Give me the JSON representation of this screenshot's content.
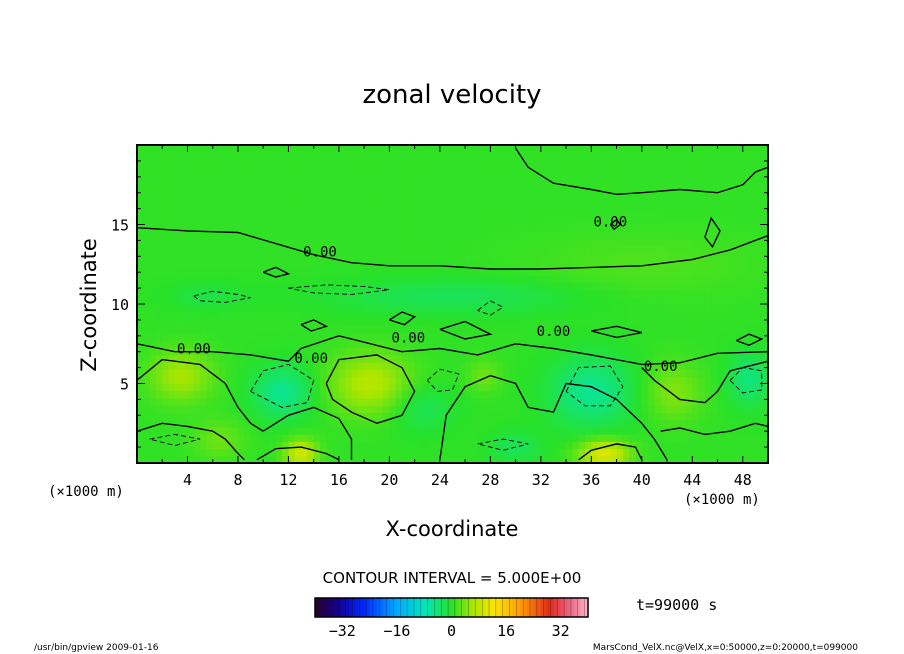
{
  "chart_data": {
    "type": "heatmap",
    "title": "zonal velocity",
    "xlabel": "X-coordinate",
    "ylabel": "Z-coordinate",
    "x_unit": "(×1000 m)",
    "z_unit": "(×1000 m)",
    "xlim": [
      0,
      50
    ],
    "ylim": [
      0,
      20
    ],
    "x_ticks": [
      4,
      8,
      12,
      16,
      20,
      24,
      28,
      32,
      36,
      40,
      44,
      48
    ],
    "y_ticks": [
      5,
      10,
      15
    ],
    "contour_interval_text": "CONTOUR INTERVAL = 5.000E+00",
    "contour_label": "0.00",
    "time_text": "t=99000 s",
    "colorbar": {
      "min": -40,
      "max": 40,
      "ticks": [
        -32,
        -16,
        0,
        16,
        32
      ]
    },
    "blobs": [
      {
        "x": 3.5,
        "z": 5.5,
        "rx": 2.4,
        "rz": 1.6,
        "v": 6
      },
      {
        "x": 18.5,
        "z": 5,
        "rx": 3.2,
        "rz": 1.9,
        "v": 7
      },
      {
        "x": 13,
        "z": 0.6,
        "rx": 1.3,
        "rz": 0.9,
        "v": 9
      },
      {
        "x": 37,
        "z": 0.6,
        "rx": 2.0,
        "rz": 0.9,
        "v": 10
      },
      {
        "x": 42.5,
        "z": 4.5,
        "rx": 2.2,
        "rz": 1.8,
        "v": 4
      },
      {
        "x": 27.5,
        "z": 5.5,
        "rx": 1.3,
        "rz": 1.0,
        "v": 3
      },
      {
        "x": 6.5,
        "z": 1.5,
        "rx": 2.0,
        "rz": 1.2,
        "v": 3
      },
      {
        "x": 11.5,
        "z": 4.5,
        "rx": 2.3,
        "rz": 1.6,
        "v": -6
      },
      {
        "x": 36,
        "z": 4.5,
        "rx": 3.2,
        "rz": 2.2,
        "v": -6
      },
      {
        "x": 48.5,
        "z": 5.3,
        "rx": 1.6,
        "rz": 1.6,
        "v": -5
      },
      {
        "x": 22.5,
        "z": 3.5,
        "rx": 2.5,
        "rz": 1.5,
        "v": -3
      },
      {
        "x": 25,
        "z": 10.5,
        "rx": 10.0,
        "rz": 1.1,
        "v": -3
      },
      {
        "x": 5.5,
        "z": 10.5,
        "rx": 3.0,
        "rz": 0.8,
        "v": -2
      },
      {
        "x": 30,
        "z": 1.0,
        "rx": 2.0,
        "rz": 1.0,
        "v": -3
      },
      {
        "x": 40,
        "z": 12.5,
        "rx": 9.0,
        "rz": 2.0,
        "v": 1.5
      }
    ],
    "contour_lines": [
      {
        "style": "solid",
        "points": [
          [
            0,
            14.8
          ],
          [
            4,
            14.6
          ],
          [
            8,
            14.5
          ],
          [
            11,
            13.8
          ],
          [
            14,
            13.1
          ],
          [
            17,
            12.6
          ],
          [
            20,
            12.4
          ],
          [
            24,
            12.4
          ],
          [
            28,
            12.2
          ],
          [
            32,
            12.2
          ],
          [
            36,
            12.3
          ],
          [
            40,
            12.4
          ],
          [
            44,
            12.8
          ],
          [
            47,
            13.4
          ],
          [
            50,
            14.3
          ]
        ]
      },
      {
        "style": "solid",
        "points": [
          [
            30,
            19.8
          ],
          [
            31,
            18.6
          ],
          [
            33,
            17.6
          ],
          [
            36,
            17.2
          ],
          [
            38,
            16.9
          ],
          [
            40,
            17.0
          ],
          [
            43,
            17.2
          ],
          [
            46,
            17.0
          ],
          [
            48,
            17.5
          ],
          [
            49,
            18.3
          ],
          [
            50,
            18.6
          ]
        ]
      },
      {
        "style": "solid",
        "points": [
          [
            0,
            7.5
          ],
          [
            3,
            7.0
          ],
          [
            6,
            7.0
          ],
          [
            9,
            6.8
          ],
          [
            12,
            6.4
          ],
          [
            13,
            7.2
          ],
          [
            16,
            8.0
          ],
          [
            18,
            7.6
          ],
          [
            21,
            7.0
          ],
          [
            24,
            7.2
          ],
          [
            27,
            6.8
          ],
          [
            30,
            7.5
          ],
          [
            33,
            7.2
          ],
          [
            36,
            6.8
          ],
          [
            40,
            6.2
          ],
          [
            43,
            6.3
          ],
          [
            46,
            6.9
          ],
          [
            50,
            7.0
          ]
        ]
      },
      {
        "style": "solid",
        "points": [
          [
            0,
            5.2
          ],
          [
            2,
            6.5
          ],
          [
            5,
            6.2
          ],
          [
            7,
            5.0
          ],
          [
            8,
            3.5
          ],
          [
            9,
            2.5
          ],
          [
            10,
            2.0
          ]
        ]
      },
      {
        "style": "solid",
        "points": [
          [
            10,
            2.0
          ],
          [
            12,
            3.0
          ],
          [
            14,
            3.5
          ],
          [
            16,
            2.8
          ],
          [
            17,
            1.5
          ],
          [
            17,
            0.2
          ]
        ]
      },
      {
        "style": "solid",
        "points": [
          [
            15,
            5.0
          ],
          [
            16,
            6.5
          ],
          [
            19,
            6.8
          ],
          [
            21,
            6.0
          ],
          [
            22,
            4.5
          ],
          [
            21,
            3.0
          ],
          [
            19,
            2.5
          ],
          [
            17,
            3.2
          ],
          [
            15.5,
            4.0
          ],
          [
            15,
            5.0
          ]
        ]
      },
      {
        "style": "solid",
        "points": [
          [
            24,
            0.2
          ],
          [
            24.5,
            3.0
          ],
          [
            26,
            4.8
          ],
          [
            28,
            5.5
          ],
          [
            30,
            5.0
          ],
          [
            31,
            3.5
          ],
          [
            33,
            3.2
          ],
          [
            34,
            5.0
          ],
          [
            36,
            4.8
          ],
          [
            38,
            4.0
          ],
          [
            40,
            2.5
          ],
          [
            41,
            1.5
          ],
          [
            42,
            0.2
          ]
        ]
      },
      {
        "style": "solid",
        "points": [
          [
            41.5,
            2.0
          ],
          [
            43,
            2.2
          ],
          [
            45,
            1.8
          ],
          [
            47,
            2.0
          ],
          [
            49,
            2.5
          ],
          [
            50,
            2.3
          ]
        ]
      },
      {
        "style": "solid",
        "points": [
          [
            40,
            6.0
          ],
          [
            41,
            5.2
          ],
          [
            43,
            4.0
          ],
          [
            45,
            3.8
          ],
          [
            46,
            4.5
          ],
          [
            47,
            5.8
          ],
          [
            50,
            6.4
          ]
        ]
      },
      {
        "style": "solid",
        "points": [
          [
            0,
            2.0
          ],
          [
            2,
            2.5
          ],
          [
            4,
            2.3
          ],
          [
            6,
            2.0
          ],
          [
            7,
            1.5
          ],
          [
            8,
            0.6
          ],
          [
            8.5,
            0.2
          ]
        ]
      },
      {
        "style": "solid",
        "points": [
          [
            9.5,
            0.2
          ],
          [
            11,
            0.9
          ],
          [
            13,
            1.0
          ],
          [
            15,
            0.6
          ],
          [
            16,
            0.2
          ]
        ]
      },
      {
        "style": "solid",
        "points": [
          [
            35,
            0.2
          ],
          [
            36,
            0.8
          ],
          [
            38,
            1.2
          ],
          [
            39.5,
            1.0
          ],
          [
            40,
            0.2
          ]
        ]
      },
      {
        "style": "solid",
        "points": [
          [
            10,
            12.0
          ],
          [
            11,
            12.3
          ],
          [
            12,
            11.9
          ],
          [
            11,
            11.7
          ],
          [
            10,
            12.0
          ]
        ]
      },
      {
        "style": "solid",
        "points": [
          [
            13,
            8.7
          ],
          [
            14,
            9.0
          ],
          [
            15,
            8.6
          ],
          [
            13.8,
            8.3
          ],
          [
            13,
            8.7
          ]
        ]
      },
      {
        "style": "solid",
        "points": [
          [
            20,
            9.0
          ],
          [
            21,
            9.5
          ],
          [
            22,
            9.2
          ],
          [
            21.2,
            8.7
          ],
          [
            20,
            9.0
          ]
        ]
      },
      {
        "style": "solid",
        "points": [
          [
            24,
            8.4
          ],
          [
            26,
            8.9
          ],
          [
            28,
            8.1
          ],
          [
            26,
            7.8
          ],
          [
            24,
            8.4
          ]
        ]
      },
      {
        "style": "solid",
        "points": [
          [
            36,
            8.3
          ],
          [
            38,
            8.6
          ],
          [
            40,
            8.2
          ],
          [
            38,
            7.9
          ],
          [
            36,
            8.3
          ]
        ]
      },
      {
        "style": "solid",
        "points": [
          [
            47.5,
            7.7
          ],
          [
            48.5,
            8.1
          ],
          [
            49.5,
            7.8
          ],
          [
            48.5,
            7.4
          ],
          [
            47.5,
            7.7
          ]
        ]
      },
      {
        "style": "solid",
        "points": [
          [
            37.5,
            15.0
          ],
          [
            38,
            15.3
          ],
          [
            38.3,
            15.0
          ],
          [
            37.8,
            14.7
          ],
          [
            37.5,
            15.0
          ]
        ]
      },
      {
        "style": "solid",
        "points": [
          [
            45,
            14.2
          ],
          [
            45.5,
            15.4
          ],
          [
            46.2,
            14.6
          ],
          [
            45.6,
            13.6
          ],
          [
            45,
            14.2
          ]
        ]
      },
      {
        "style": "dashed",
        "points": [
          [
            4.5,
            10.5
          ],
          [
            6,
            10.8
          ],
          [
            8,
            10.6
          ],
          [
            9,
            10.4
          ],
          [
            7,
            10.1
          ],
          [
            5,
            10.2
          ],
          [
            4.5,
            10.5
          ]
        ]
      },
      {
        "style": "dashed",
        "points": [
          [
            12,
            11.0
          ],
          [
            15,
            11.2
          ],
          [
            18,
            11.1
          ],
          [
            20,
            10.9
          ],
          [
            17,
            10.6
          ],
          [
            14,
            10.7
          ],
          [
            12,
            11.0
          ]
        ]
      },
      {
        "style": "dashed",
        "points": [
          [
            27,
            9.6
          ],
          [
            28,
            10.2
          ],
          [
            29,
            9.8
          ],
          [
            28,
            9.3
          ],
          [
            27,
            9.6
          ]
        ]
      },
      {
        "style": "dashed",
        "points": [
          [
            9,
            4.5
          ],
          [
            10,
            5.8
          ],
          [
            12,
            6.2
          ],
          [
            14,
            5.2
          ],
          [
            13.5,
            3.8
          ],
          [
            11.5,
            3.5
          ],
          [
            9,
            4.5
          ]
        ]
      },
      {
        "style": "dashed",
        "points": [
          [
            34,
            4.5
          ],
          [
            35,
            6.0
          ],
          [
            37.5,
            6.1
          ],
          [
            38.5,
            4.8
          ],
          [
            37.5,
            3.6
          ],
          [
            35.5,
            3.6
          ],
          [
            34,
            4.5
          ]
        ]
      },
      {
        "style": "dashed",
        "points": [
          [
            47,
            5.2
          ],
          [
            48,
            6.0
          ],
          [
            49.5,
            5.8
          ],
          [
            49.5,
            4.6
          ],
          [
            48,
            4.4
          ],
          [
            47,
            5.2
          ]
        ]
      },
      {
        "style": "dashed",
        "points": [
          [
            23,
            5.2
          ],
          [
            24,
            5.9
          ],
          [
            25.5,
            5.6
          ],
          [
            25,
            4.6
          ],
          [
            23.8,
            4.5
          ],
          [
            23,
            5.2
          ]
        ]
      },
      {
        "style": "dashed",
        "points": [
          [
            1,
            1.5
          ],
          [
            3,
            1.8
          ],
          [
            5,
            1.5
          ],
          [
            3,
            1.1
          ],
          [
            1,
            1.5
          ]
        ]
      },
      {
        "style": "dashed",
        "points": [
          [
            27,
            1.2
          ],
          [
            29,
            1.5
          ],
          [
            31,
            1.2
          ],
          [
            29,
            0.8
          ],
          [
            27,
            1.2
          ]
        ]
      }
    ],
    "contour_labels": [
      {
        "x": 14.5,
        "z": 13.3
      },
      {
        "x": 37.5,
        "z": 15.2
      },
      {
        "x": 4.5,
        "z": 7.2
      },
      {
        "x": 13.8,
        "z": 6.6
      },
      {
        "x": 21.5,
        "z": 7.9
      },
      {
        "x": 33,
        "z": 8.3
      },
      {
        "x": 41.5,
        "z": 6.1
      }
    ]
  },
  "footer": {
    "left": "/usr/bin/gpview  2009-01-16",
    "right": "MarsCond_VelX.nc@VelX,x=0:50000,z=0:20000,t=099000"
  }
}
